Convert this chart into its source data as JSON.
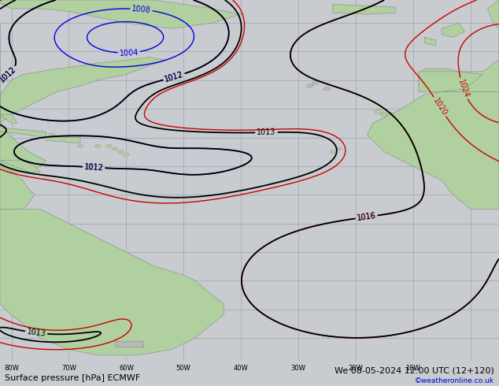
{
  "title_left": "Surface pressure [hPa] ECMWF",
  "title_right": "We 08-05-2024 12:00 UTC (12+120)",
  "copyright": "©weatheronline.co.uk",
  "bottom_labels": [
    "80W",
    "70W",
    "60W",
    "50W",
    "40W",
    "30W",
    "20W",
    "10W"
  ],
  "background_ocean": "#c8ccd0",
  "background_land_green": "#b0d0a0",
  "background_land_gray": "#b8b8b8",
  "grid_color": "#999999",
  "contour_black_color": "#000000",
  "contour_blue_color": "#0000dd",
  "contour_red_color": "#cc0000",
  "label_fontsize": 7,
  "title_fontsize": 8,
  "fig_width": 6.34,
  "fig_height": 4.9,
  "dpi": 100,
  "lon_min": -82,
  "lon_max": 5,
  "lat_min": -58,
  "lat_max": 68
}
